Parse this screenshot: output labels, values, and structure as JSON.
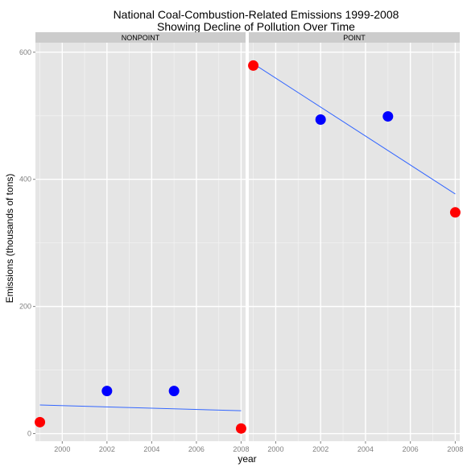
{
  "chart_data": {
    "type": "scatter",
    "title_line1": "National Coal-Combustion-Related Emissions 1999-2008",
    "title_line2": "Showing Decline of Pollution Over Time",
    "xlabel": "year",
    "ylabel": "Emissions (thousands of tons)",
    "xlim": [
      1998.8,
      2008.2
    ],
    "ylim": [
      -12,
      615
    ],
    "x_ticks": [
      2000,
      2002,
      2004,
      2006,
      2008
    ],
    "y_ticks": [
      0,
      200,
      400,
      600
    ],
    "grid": true,
    "panels": [
      {
        "name": "NONPOINT",
        "points": [
          {
            "x": 1999,
            "y": 18,
            "color": "#ff0000"
          },
          {
            "x": 2002,
            "y": 67,
            "color": "#0000ff"
          },
          {
            "x": 2005,
            "y": 67,
            "color": "#0000ff"
          },
          {
            "x": 2008,
            "y": 8,
            "color": "#ff0000"
          }
        ],
        "trend": {
          "x": [
            1999,
            2008
          ],
          "y": [
            45,
            36
          ]
        }
      },
      {
        "name": "POINT",
        "points": [
          {
            "x": 1999,
            "y": 579,
            "color": "#ff0000"
          },
          {
            "x": 2002,
            "y": 494,
            "color": "#0000ff"
          },
          {
            "x": 2005,
            "y": 499,
            "color": "#0000ff"
          },
          {
            "x": 2008,
            "y": 348,
            "color": "#ff0000"
          }
        ],
        "trend": {
          "x": [
            1999,
            2008
          ],
          "y": [
            582,
            377
          ]
        }
      }
    ],
    "colors": {
      "panel_bg": "#e5e5e5",
      "strip_bg": "#cccccc",
      "grid_major": "#ffffff",
      "grid_minor": "#f2f2f2",
      "trend_line": "#3366ff",
      "tick_text": "#7f7f7f"
    }
  }
}
